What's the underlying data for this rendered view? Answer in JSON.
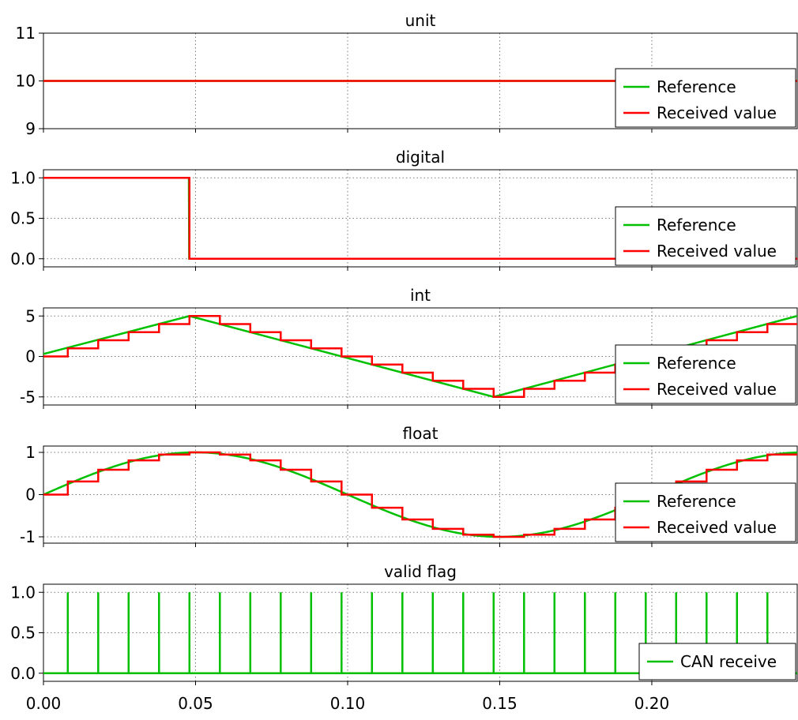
{
  "chart_data": [
    {
      "type": "line",
      "title": "unit",
      "ylim": [
        9,
        11
      ],
      "yticks": [
        "9",
        "10",
        "11"
      ],
      "xlim": [
        0,
        0.2478
      ],
      "legend_position": "right",
      "grid": true,
      "series": [
        {
          "name": "Reference",
          "color": "#00c000",
          "step": false,
          "x": [
            0,
            0.2478
          ],
          "y": [
            10,
            10
          ]
        },
        {
          "name": "Received value",
          "color": "#ff0000",
          "step": true,
          "x": [
            0,
            0.2478
          ],
          "y": [
            10,
            10
          ]
        }
      ]
    },
    {
      "type": "line",
      "title": "digital",
      "ylim": [
        -0.1,
        1.1
      ],
      "yticks": [
        "0.0",
        "0.5",
        "1.0"
      ],
      "xlim": [
        0,
        0.2478
      ],
      "legend_position": "right",
      "grid": true,
      "series": [
        {
          "name": "Reference",
          "color": "#00c000",
          "step": false,
          "x": [
            0,
            0.0478,
            0.0479,
            0.2478
          ],
          "y": [
            1,
            1,
            0,
            0
          ]
        },
        {
          "name": "Received value",
          "color": "#ff0000",
          "step": true,
          "x": [
            0,
            0.048,
            0.2478
          ],
          "y": [
            1,
            0,
            0
          ]
        }
      ]
    },
    {
      "type": "line",
      "title": "int",
      "ylim": [
        -6,
        6
      ],
      "yticks": [
        "-5",
        "0",
        "5"
      ],
      "xlim": [
        0,
        0.2478
      ],
      "legend_position": "right",
      "grid": true,
      "series": [
        {
          "name": "Reference",
          "color": "#00c000",
          "step": false,
          "x": [
            0,
            0.048,
            0.148,
            0.2478
          ],
          "y": [
            0.3,
            5,
            -5,
            5
          ]
        },
        {
          "name": "Received value",
          "color": "#ff0000",
          "step": true,
          "x": [
            0,
            0.008,
            0.018,
            0.028,
            0.038,
            0.048,
            0.058,
            0.068,
            0.078,
            0.088,
            0.098,
            0.108,
            0.118,
            0.128,
            0.138,
            0.148,
            0.158,
            0.168,
            0.178,
            0.188,
            0.198,
            0.208,
            0.218,
            0.228,
            0.238,
            0.2478
          ],
          "y": [
            0,
            1,
            2,
            3,
            4,
            5,
            4,
            3,
            2,
            1,
            0,
            -1,
            -2,
            -3,
            -4,
            -5,
            -4,
            -3,
            -2,
            -1,
            0,
            1,
            2,
            3,
            4,
            4
          ]
        }
      ]
    },
    {
      "type": "line",
      "title": "float",
      "ylim": [
        -1.15,
        1.15
      ],
      "yticks": [
        "-1",
        "0",
        "1"
      ],
      "xlim": [
        0,
        0.2478
      ],
      "legend_position": "right",
      "grid": true,
      "series": [
        {
          "name": "Reference",
          "color": "#00c000",
          "step": false,
          "function": "sin(2*pi*5*t)",
          "x": [
            0,
            0.2478
          ],
          "y": [
            0,
            1
          ]
        },
        {
          "name": "Received value",
          "color": "#ff0000",
          "step": true,
          "x": [
            0,
            0.008,
            0.018,
            0.028,
            0.038,
            0.048,
            0.058,
            0.068,
            0.078,
            0.088,
            0.098,
            0.108,
            0.118,
            0.128,
            0.138,
            0.148,
            0.158,
            0.168,
            0.178,
            0.188,
            0.198,
            0.208,
            0.218,
            0.228,
            0.238,
            0.2478
          ],
          "y": [
            0,
            0.31,
            0.59,
            0.81,
            0.95,
            1.0,
            0.95,
            0.81,
            0.59,
            0.31,
            0,
            -0.31,
            -0.59,
            -0.81,
            -0.95,
            -1.0,
            -0.95,
            -0.81,
            -0.59,
            -0.31,
            0,
            0.31,
            0.59,
            0.81,
            0.95,
            0.95
          ]
        }
      ]
    },
    {
      "type": "line",
      "title": "valid flag",
      "ylim": [
        -0.1,
        1.1
      ],
      "yticks": [
        "0.0",
        "0.5",
        "1.0"
      ],
      "xlim": [
        0,
        0.2478
      ],
      "xticks": [
        "0.00",
        "0.05",
        "0.10",
        "0.15",
        "0.20"
      ],
      "legend_position": "bottom-right",
      "grid": true,
      "series": [
        {
          "name": "CAN receive",
          "color": "#00c000",
          "pulse": true,
          "x": [
            0.008,
            0.018,
            0.028,
            0.038,
            0.048,
            0.058,
            0.068,
            0.078,
            0.088,
            0.098,
            0.108,
            0.118,
            0.128,
            0.138,
            0.148,
            0.158,
            0.168,
            0.178,
            0.188,
            0.198,
            0.208,
            0.218,
            0.228,
            0.238
          ],
          "y": [
            1,
            1,
            1,
            1,
            1,
            1,
            1,
            1,
            1,
            1,
            1,
            1,
            1,
            1,
            1,
            1,
            1,
            1,
            1,
            1,
            1,
            1,
            1,
            1
          ]
        }
      ]
    }
  ]
}
